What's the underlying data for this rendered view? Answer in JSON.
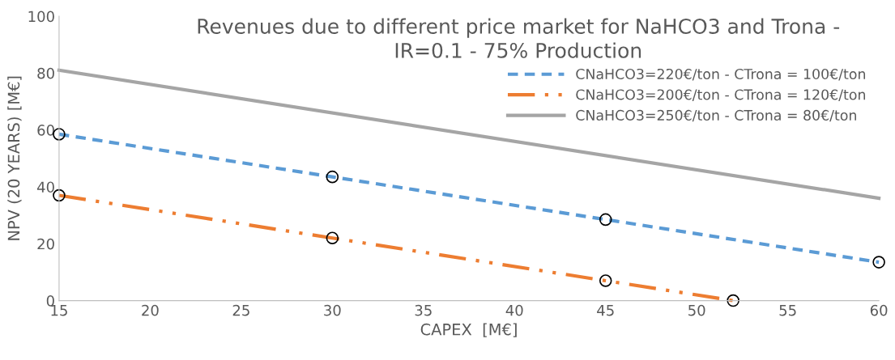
{
  "chart_data": {
    "type": "line",
    "title": "Revenues due to different price market for NaHCO3 and Trona -\nIR=0.1 - 75% Production",
    "xlabel": "CAPEX  [M€]",
    "ylabel": "NPV (20 YEARS) [M€]",
    "series": [
      {
        "name": "CNaHCO3=220€/ton - CTrona = 100€/ton",
        "color": "#5b9bd5",
        "x": [
          15,
          30,
          45,
          60
        ],
        "values": [
          58.5,
          43.5,
          28.5,
          13.5
        ],
        "line_style": "dashed",
        "marker": "circle"
      },
      {
        "name": "CNaHCO3=200€/ton - CTrona = 120€/ton",
        "color": "#ed7d31",
        "x": [
          15,
          30,
          45,
          52
        ],
        "values": [
          37,
          22,
          7,
          0
        ],
        "line_style": "dashdot",
        "marker": "circle"
      },
      {
        "name": "CNaHCO3=250€/ton - CTrona = 80€/ton",
        "color": "#a5a5a5",
        "x": [
          15,
          60
        ],
        "values": [
          81,
          36
        ],
        "line_style": "solid",
        "marker": "none"
      }
    ],
    "xlim": [
      15,
      60
    ],
    "xticks": [
      15,
      20,
      25,
      30,
      35,
      40,
      45,
      50,
      55,
      60
    ],
    "ylim": [
      0,
      100
    ],
    "yticks": [
      0,
      20,
      40,
      60,
      80,
      100
    ],
    "grid": false,
    "legend": "top right"
  }
}
